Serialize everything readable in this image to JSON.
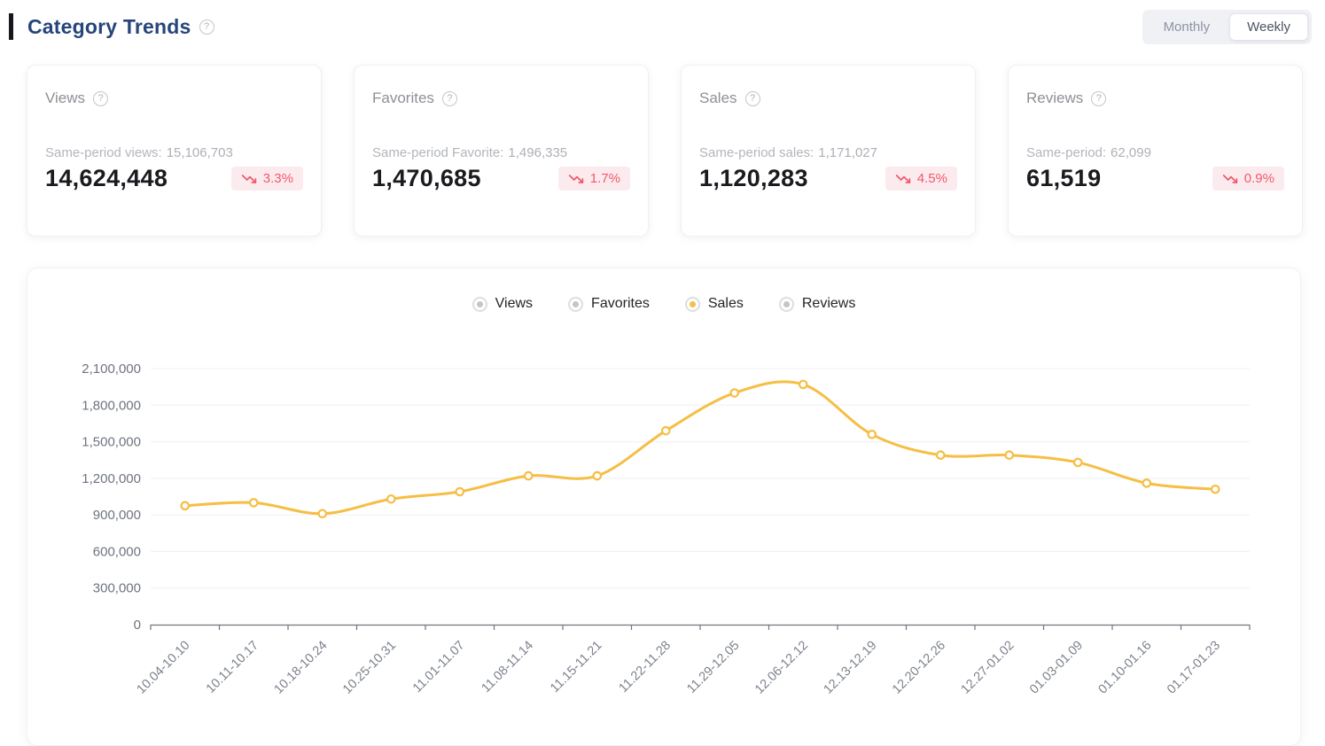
{
  "header": {
    "title": "Category Trends",
    "toggle": {
      "monthly": "Monthly",
      "weekly": "Weekly",
      "active": "Weekly"
    }
  },
  "icons": {
    "help": "?",
    "trend": "trending-down"
  },
  "colors": {
    "accent": "#F6BE44",
    "down_red": "#F0596B",
    "down_bg": "#FCEBEE",
    "title_blue": "#26457C"
  },
  "cards": [
    {
      "title": "Views",
      "subtitle_label": "Same-period views:",
      "subtitle_value": "15,106,703",
      "value": "14,624,448",
      "change": "3.3%",
      "direction": "down"
    },
    {
      "title": "Favorites",
      "subtitle_label": "Same-period Favorite:",
      "subtitle_value": "1,496,335",
      "value": "1,470,685",
      "change": "1.7%",
      "direction": "down"
    },
    {
      "title": "Sales",
      "subtitle_label": "Same-period sales:",
      "subtitle_value": "1,171,027",
      "value": "1,120,283",
      "change": "4.5%",
      "direction": "down"
    },
    {
      "title": "Reviews",
      "subtitle_label": "Same-period:",
      "subtitle_value": "62,099",
      "value": "61,519",
      "change": "0.9%",
      "direction": "down"
    }
  ],
  "legend": [
    {
      "label": "Views",
      "active": false
    },
    {
      "label": "Favorites",
      "active": false
    },
    {
      "label": "Sales",
      "active": true
    },
    {
      "label": "Reviews",
      "active": false
    }
  ],
  "chart_data": {
    "type": "line",
    "title": "",
    "xlabel": "",
    "ylabel": "",
    "categories": [
      "10.04-10.10",
      "10.11-10.17",
      "10.18-10.24",
      "10.25-10.31",
      "11.01-11.07",
      "11.08-11.14",
      "11.15-11.21",
      "11.22-11.28",
      "11.29-12.05",
      "12.06-12.12",
      "12.13-12.19",
      "12.20-12.26",
      "12.27-01.02",
      "01.03-01.09",
      "01.10-01.16",
      "01.17-01.23"
    ],
    "series": [
      {
        "name": "Sales",
        "color": "#F6BE44",
        "smooth": true,
        "values": [
          975000,
          1000000,
          910000,
          1030000,
          1090000,
          1220000,
          1220000,
          1590000,
          1900000,
          1970000,
          1560000,
          1390000,
          1390000,
          1330000,
          1160000,
          1110000
        ]
      }
    ],
    "ylim": [
      0,
      2100000
    ],
    "ytick_step": 300000,
    "grid": true,
    "legend_position": "top"
  }
}
